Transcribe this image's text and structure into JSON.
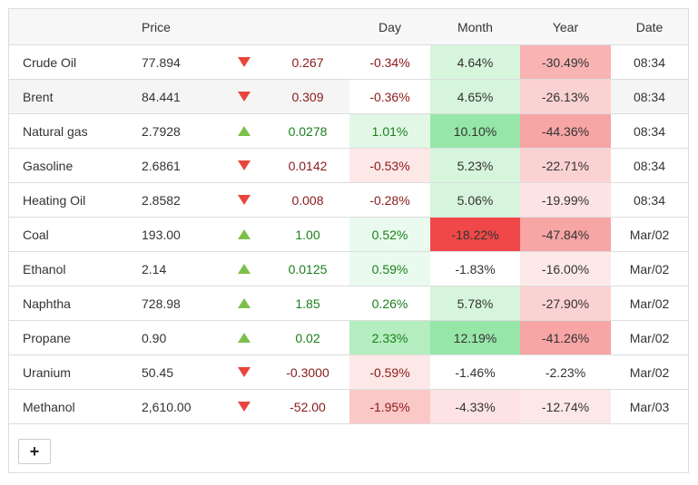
{
  "headers": {
    "name": "",
    "price": "Price",
    "arrow": "",
    "change": "",
    "day": "Day",
    "month": "Month",
    "year": "Year",
    "date": "Date"
  },
  "rows": [
    {
      "name": "Crude Oil",
      "price": "77.894",
      "dir": "down",
      "change": "0.267",
      "day": "-0.34%",
      "month": "4.64%",
      "year": "-30.49%",
      "date": "08:34",
      "day_bg": "#ffffff",
      "month_bg": "#d6f5dc",
      "year_bg": "#f9b3b3"
    },
    {
      "name": "Brent",
      "price": "84.441",
      "dir": "down",
      "change": "0.309",
      "day": "-0.36%",
      "month": "4.65%",
      "year": "-26.13%",
      "date": "08:34",
      "day_bg": "#ffffff",
      "month_bg": "#d6f5dc",
      "year_bg": "#fbd2d2"
    },
    {
      "name": "Natural gas",
      "price": "2.7928",
      "dir": "up",
      "change": "0.0278",
      "day": "1.01%",
      "month": "10.10%",
      "year": "-44.36%",
      "date": "08:34",
      "day_bg": "#e2f7e6",
      "month_bg": "#96e6a8",
      "year_bg": "#f7a5a5"
    },
    {
      "name": "Gasoline",
      "price": "2.6861",
      "dir": "down",
      "change": "0.0142",
      "day": "-0.53%",
      "month": "5.23%",
      "year": "-22.71%",
      "date": "08:34",
      "day_bg": "#fde8e8",
      "month_bg": "#d6f5dc",
      "year_bg": "#fbd2d2"
    },
    {
      "name": "Heating Oil",
      "price": "2.8582",
      "dir": "down",
      "change": "0.008",
      "day": "-0.28%",
      "month": "5.06%",
      "year": "-19.99%",
      "date": "08:34",
      "day_bg": "#ffffff",
      "month_bg": "#d6f5dc",
      "year_bg": "#fde3e3"
    },
    {
      "name": "Coal",
      "price": "193.00",
      "dir": "up",
      "change": "1.00",
      "day": "0.52%",
      "month": "-18.22%",
      "year": "-47.84%",
      "date": "Mar/02",
      "day_bg": "#eafaee",
      "month_bg": "#f04848",
      "year_bg": "#f7a5a5"
    },
    {
      "name": "Ethanol",
      "price": "2.14",
      "dir": "up",
      "change": "0.0125",
      "day": "0.59%",
      "month": "-1.83%",
      "year": "-16.00%",
      "date": "Mar/02",
      "day_bg": "#eafaee",
      "month_bg": "#ffffff",
      "year_bg": "#fde8e8"
    },
    {
      "name": "Naphtha",
      "price": "728.98",
      "dir": "up",
      "change": "1.85",
      "day": "0.26%",
      "month": "5.78%",
      "year": "-27.90%",
      "date": "Mar/02",
      "day_bg": "#ffffff",
      "month_bg": "#d6f5dc",
      "year_bg": "#fbd2d2"
    },
    {
      "name": "Propane",
      "price": "0.90",
      "dir": "up",
      "change": "0.02",
      "day": "2.33%",
      "month": "12.19%",
      "year": "-41.26%",
      "date": "Mar/02",
      "day_bg": "#b4edbf",
      "month_bg": "#96e6a8",
      "year_bg": "#f7a5a5"
    },
    {
      "name": "Uranium",
      "price": "50.45",
      "dir": "down",
      "change": "-0.3000",
      "day": "-0.59%",
      "month": "-1.46%",
      "year": "-2.23%",
      "date": "Mar/02",
      "day_bg": "#fde8e8",
      "month_bg": "#ffffff",
      "year_bg": "#ffffff"
    },
    {
      "name": "Methanol",
      "price": "2,610.00",
      "dir": "down",
      "change": "-52.00",
      "day": "-1.95%",
      "month": "-4.33%",
      "year": "-12.74%",
      "date": "Mar/03",
      "day_bg": "#fbc8c8",
      "month_bg": "#fde3e3",
      "year_bg": "#fde8e8"
    }
  ],
  "colors": {
    "up_arrow": "#7cc04b",
    "down_arrow": "#e8453c",
    "up_text": "#1a7f1a",
    "down_text": "#8b1a1a"
  },
  "add_button": {
    "label": "+",
    "icon": "plus-icon"
  }
}
